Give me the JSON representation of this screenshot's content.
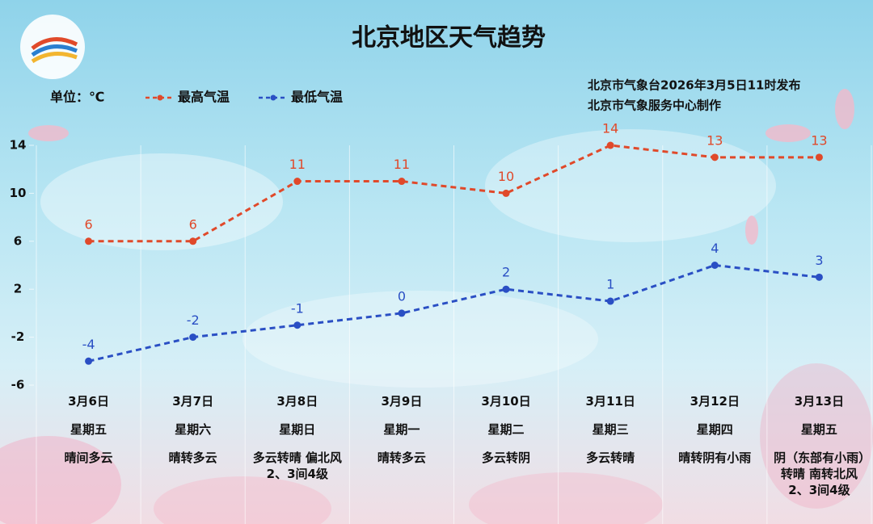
{
  "chart_data": {
    "type": "line",
    "title": "北京地区天气趋势",
    "unit_label": "单位：℃",
    "source": [
      "北京市气象台2026年3月5日11时发布",
      "北京市气象服务中心制作"
    ],
    "categories": [
      "3月6日",
      "3月7日",
      "3月8日",
      "3月9日",
      "3月10日",
      "3月11日",
      "3月12日",
      "3月13日"
    ],
    "weekdays": [
      "星期五",
      "星期六",
      "星期日",
      "星期一",
      "星期二",
      "星期三",
      "星期四",
      "星期五"
    ],
    "weather": [
      "晴间多云",
      "晴转多云",
      "多云转晴 偏北风2、3间4级",
      "晴转多云",
      "多云转阴",
      "多云转晴",
      "晴转阴有小雨",
      "阴（东部有小雨）转晴 南转北风2、3间4级"
    ],
    "series": [
      {
        "name": "最高气温",
        "color": "#e0492a",
        "values": [
          6,
          6,
          11,
          11,
          10,
          14,
          13,
          13
        ]
      },
      {
        "name": "最低气温",
        "color": "#2a4fc4",
        "values": [
          -4,
          -2,
          -1,
          0,
          2,
          1,
          4,
          3
        ]
      }
    ],
    "ylim": [
      -6,
      14
    ],
    "yticks": [
      14,
      10,
      6,
      2,
      -2,
      -6
    ]
  }
}
